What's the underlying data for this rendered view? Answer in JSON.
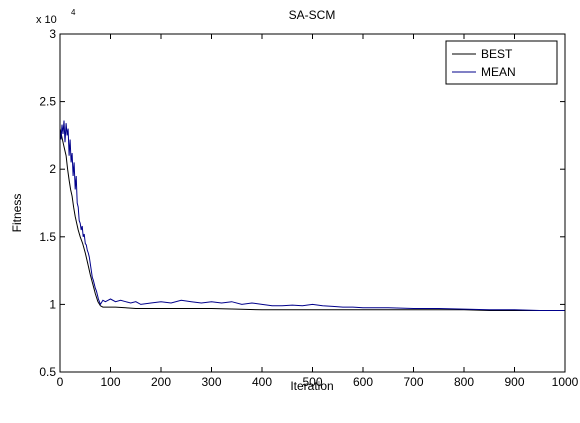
{
  "chart_data": {
    "type": "line",
    "title": "SA-SCM",
    "xlabel": "Iteration",
    "ylabel": "Fitness",
    "y_exponent_label": "x 10",
    "y_exponent_power": "4",
    "xlim": [
      0,
      1000
    ],
    "ylim": [
      0.5,
      3
    ],
    "xticks": [
      0,
      100,
      200,
      300,
      400,
      500,
      600,
      700,
      800,
      900,
      1000
    ],
    "xtick_labels": [
      "0",
      "100",
      "200",
      "300",
      "400",
      "500",
      "600",
      "700",
      "800",
      "900",
      "1000"
    ],
    "yticks": [
      0.5,
      1,
      1.5,
      2,
      2.5,
      3
    ],
    "ytick_labels": [
      "0.5",
      "1",
      "1.5",
      "2",
      "2.5",
      "3"
    ],
    "grid": false,
    "legend_position": "top-right",
    "series": [
      {
        "name": "BEST",
        "color": "#000000",
        "x": [
          0,
          3,
          6,
          9,
          12,
          15,
          18,
          21,
          24,
          27,
          30,
          33,
          36,
          40,
          45,
          50,
          55,
          60,
          65,
          70,
          75,
          80,
          85,
          90,
          100,
          110,
          130,
          150,
          200,
          250,
          300,
          350,
          400,
          450,
          500,
          550,
          600,
          650,
          700,
          750,
          800,
          850,
          900,
          950,
          1000
        ],
        "y": [
          2.3,
          2.25,
          2.2,
          2.15,
          2.1,
          2.0,
          1.92,
          1.85,
          1.8,
          1.72,
          1.65,
          1.6,
          1.55,
          1.5,
          1.45,
          1.38,
          1.3,
          1.22,
          1.15,
          1.08,
          1.02,
          0.99,
          0.98,
          0.98,
          0.98,
          0.98,
          0.975,
          0.97,
          0.97,
          0.97,
          0.97,
          0.965,
          0.96,
          0.96,
          0.96,
          0.96,
          0.96,
          0.96,
          0.96,
          0.96,
          0.96,
          0.955,
          0.955,
          0.955,
          0.955
        ]
      },
      {
        "name": "MEAN",
        "color": "#00008b",
        "x": [
          0,
          2,
          4,
          6,
          8,
          10,
          12,
          14,
          16,
          18,
          20,
          22,
          24,
          26,
          28,
          30,
          32,
          34,
          36,
          38,
          40,
          42,
          44,
          46,
          48,
          50,
          52,
          54,
          56,
          58,
          60,
          62,
          64,
          66,
          68,
          70,
          72,
          74,
          76,
          78,
          80,
          85,
          90,
          95,
          100,
          110,
          120,
          130,
          140,
          150,
          160,
          180,
          200,
          220,
          240,
          260,
          280,
          300,
          320,
          340,
          360,
          380,
          400,
          420,
          440,
          460,
          480,
          500,
          520,
          540,
          560,
          580,
          600,
          650,
          700,
          750,
          800,
          850,
          900,
          950,
          1000
        ],
        "y": [
          2.3,
          2.22,
          2.33,
          2.26,
          2.36,
          2.2,
          2.34,
          2.25,
          2.3,
          2.1,
          2.22,
          2.05,
          2.12,
          1.95,
          2.05,
          1.85,
          1.95,
          1.75,
          1.72,
          1.62,
          1.6,
          1.55,
          1.58,
          1.5,
          1.52,
          1.45,
          1.44,
          1.4,
          1.38,
          1.35,
          1.3,
          1.25,
          1.2,
          1.18,
          1.15,
          1.12,
          1.1,
          1.07,
          1.04,
          1.02,
          1.0,
          1.03,
          1.02,
          1.03,
          1.04,
          1.02,
          1.03,
          1.02,
          1.01,
          1.02,
          1.0,
          1.01,
          1.02,
          1.01,
          1.03,
          1.02,
          1.01,
          1.02,
          1.01,
          1.02,
          1.0,
          1.01,
          1.0,
          0.99,
          0.99,
          0.995,
          0.99,
          1.0,
          0.99,
          0.985,
          0.98,
          0.98,
          0.975,
          0.975,
          0.97,
          0.97,
          0.965,
          0.96,
          0.96,
          0.955,
          0.955
        ]
      }
    ]
  }
}
